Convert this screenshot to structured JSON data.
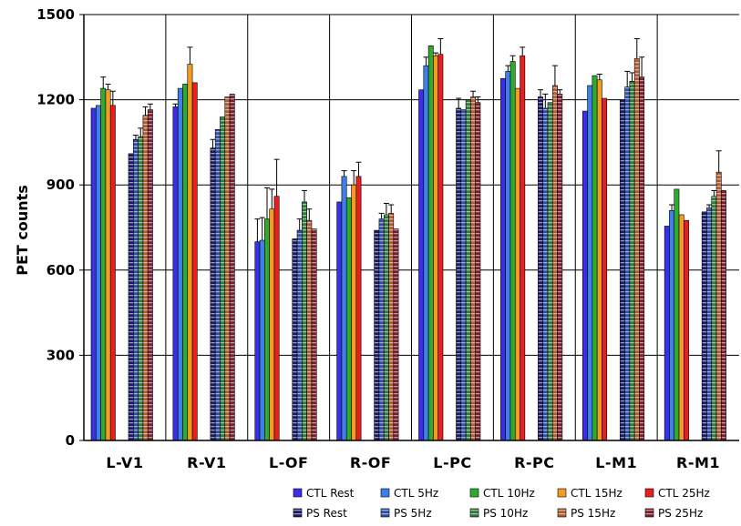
{
  "chart_data": {
    "type": "bar",
    "title": "",
    "xlabel": "",
    "ylabel": "PET counts",
    "ylim": [
      0,
      1500
    ],
    "yticks": [
      0,
      300,
      600,
      900,
      1200,
      1500
    ],
    "grid": true,
    "legend_position": "bottom",
    "categories": [
      "L-V1",
      "R-V1",
      "L-OF",
      "R-OF",
      "L-PC",
      "R-PC",
      "L-M1",
      "R-M1"
    ],
    "series": [
      {
        "name": "CTL Rest",
        "group": "CTL",
        "color": "#3a2ee6",
        "values": [
          1170,
          1175,
          700,
          840,
          1235,
          1275,
          1160,
          755
        ],
        "errors": [
          0,
          10,
          80,
          0,
          0,
          0,
          0,
          0
        ]
      },
      {
        "name": "CTL 5Hz",
        "group": "CTL",
        "color": "#3f7fe8",
        "values": [
          1180,
          1240,
          705,
          930,
          1320,
          1300,
          1250,
          810
        ],
        "errors": [
          0,
          0,
          80,
          20,
          30,
          20,
          0,
          20
        ]
      },
      {
        "name": "CTL 10Hz",
        "group": "CTL",
        "color": "#2eaa2e",
        "values": [
          1240,
          1255,
          780,
          855,
          1390,
          1335,
          1285,
          885
        ],
        "errors": [
          40,
          0,
          110,
          0,
          0,
          20,
          0,
          0
        ]
      },
      {
        "name": "CTL 15Hz",
        "group": "CTL",
        "color": "#f59a22",
        "values": [
          1235,
          1325,
          815,
          900,
          1355,
          1240,
          1270,
          795
        ],
        "errors": [
          20,
          60,
          70,
          50,
          10,
          0,
          20,
          0
        ]
      },
      {
        "name": "CTL 25Hz",
        "group": "CTL",
        "color": "#e62020",
        "values": [
          1180,
          1260,
          860,
          930,
          1360,
          1355,
          1205,
          775
        ],
        "errors": [
          50,
          0,
          130,
          50,
          55,
          30,
          0,
          0
        ]
      },
      {
        "name": "PS Rest",
        "group": "PS",
        "color": "#1a1a66",
        "values": [
          1010,
          1030,
          710,
          740,
          1170,
          1210,
          1200,
          805
        ],
        "errors": [
          0,
          30,
          0,
          0,
          35,
          25,
          0,
          0
        ]
      },
      {
        "name": "PS 5Hz",
        "group": "PS",
        "color": "#2e4fa8",
        "values": [
          1060,
          1095,
          740,
          780,
          1165,
          1170,
          1245,
          820
        ],
        "errors": [
          15,
          0,
          40,
          20,
          0,
          50,
          55,
          10
        ]
      },
      {
        "name": "PS 10Hz",
        "group": "PS",
        "color": "#2e7a3a",
        "values": [
          1070,
          1140,
          840,
          795,
          1200,
          1190,
          1265,
          860
        ],
        "errors": [
          30,
          0,
          40,
          40,
          0,
          0,
          30,
          20
        ]
      },
      {
        "name": "PS 15Hz",
        "group": "PS",
        "color": "#b25a30",
        "values": [
          1145,
          1210,
          775,
          800,
          1210,
          1250,
          1345,
          945
        ],
        "errors": [
          30,
          0,
          40,
          30,
          20,
          70,
          70,
          75
        ]
      },
      {
        "name": "PS 25Hz",
        "group": "PS",
        "color": "#7a1e2e",
        "values": [
          1165,
          1220,
          745,
          745,
          1190,
          1220,
          1280,
          880
        ],
        "errors": [
          20,
          0,
          0,
          0,
          20,
          15,
          70,
          0
        ]
      }
    ]
  }
}
